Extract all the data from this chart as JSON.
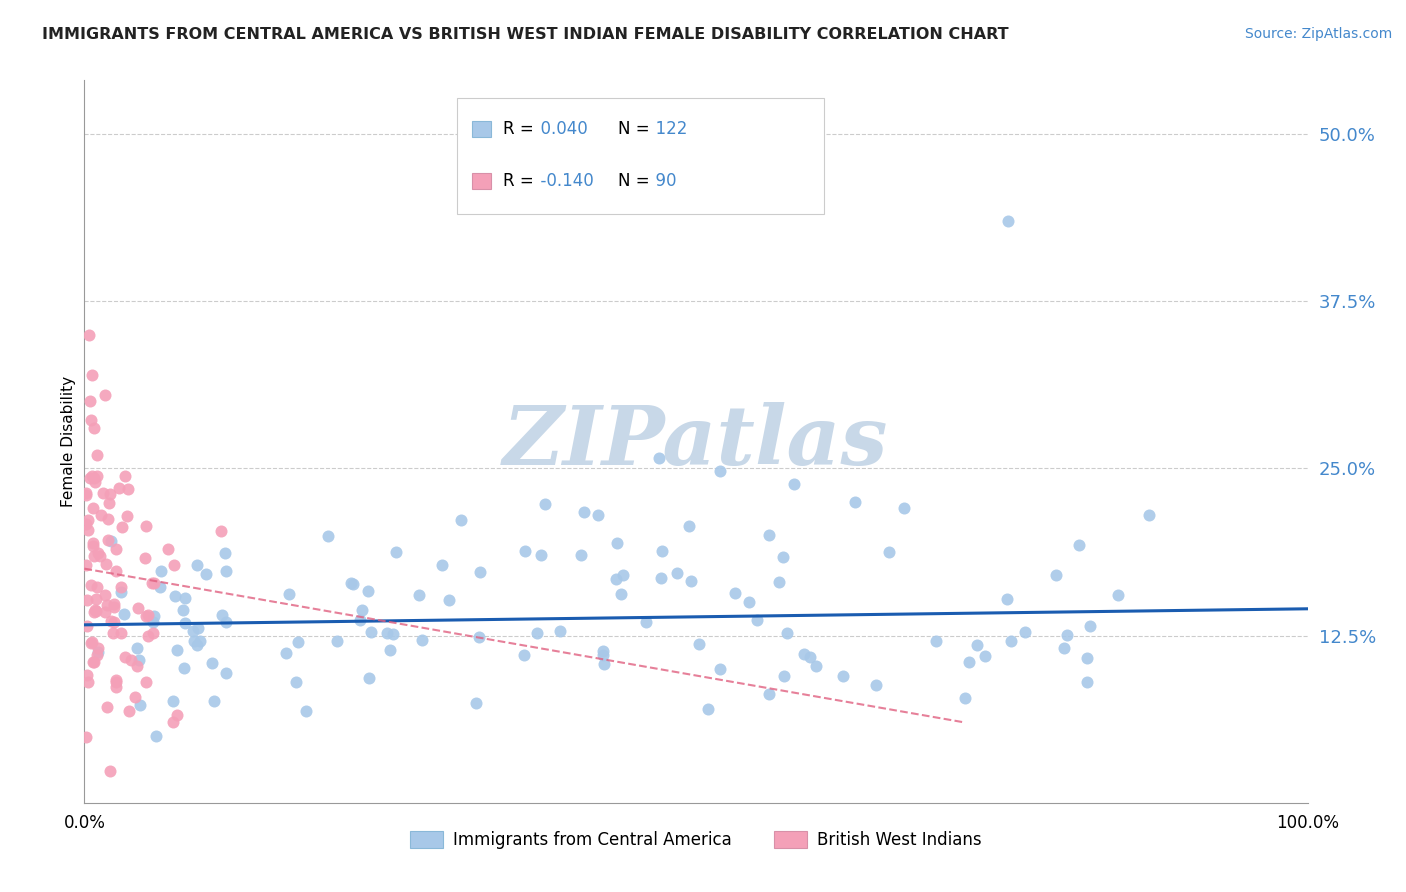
{
  "title": "IMMIGRANTS FROM CENTRAL AMERICA VS BRITISH WEST INDIAN FEMALE DISABILITY CORRELATION CHART",
  "source": "Source: ZipAtlas.com",
  "ylabel": "Female Disability",
  "ytick_values": [
    0.125,
    0.25,
    0.375,
    0.5
  ],
  "legend_blue_r": "0.040",
  "legend_blue_n": "122",
  "legend_pink_r": "-0.140",
  "legend_pink_n": "90",
  "legend_label_blue": "Immigrants from Central America",
  "legend_label_pink": "British West Indians",
  "blue_color": "#a8c8e8",
  "pink_color": "#f4a0b8",
  "trend_blue_color": "#1a5cb0",
  "trend_pink_color": "#e06080",
  "xlim": [
    0.0,
    1.0
  ],
  "ylim": [
    0.0,
    0.54
  ],
  "grid_color": "#cccccc",
  "title_color": "#222222",
  "source_color": "#4488cc",
  "ytick_color": "#4488cc"
}
